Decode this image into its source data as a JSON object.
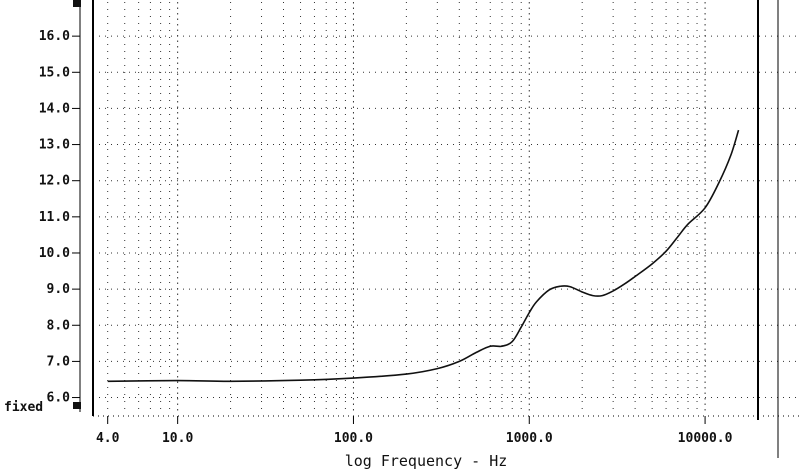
{
  "chart_data": {
    "type": "line",
    "title": "",
    "xlabel": "log Frequency - Hz",
    "ylabel": "",
    "x_scale": "log",
    "xlim": [
      3.3,
      20000
    ],
    "ylim": [
      5.6,
      17.0
    ],
    "x_ticks": [
      {
        "value": 4,
        "label": "4.0"
      },
      {
        "value": 10,
        "label": "10.0"
      },
      {
        "value": 100,
        "label": "100.0"
      },
      {
        "value": 1000,
        "label": "1000.0"
      },
      {
        "value": 10000,
        "label": "10000.0"
      }
    ],
    "y_ticks": [
      {
        "value": 6,
        "label": "6.0"
      },
      {
        "value": 7,
        "label": "7.0"
      },
      {
        "value": 8,
        "label": "8.0"
      },
      {
        "value": 9,
        "label": "9.0"
      },
      {
        "value": 10,
        "label": "10.0"
      },
      {
        "value": 11,
        "label": "11.0"
      },
      {
        "value": 12,
        "label": "12.0"
      },
      {
        "value": 13,
        "label": "13.0"
      },
      {
        "value": 14,
        "label": "14.0"
      },
      {
        "value": 15,
        "label": "15.0"
      },
      {
        "value": 16,
        "label": "16.0"
      }
    ],
    "y_bottom_label": "fixed",
    "grid": true,
    "series": [
      {
        "name": "",
        "x": [
          4,
          10,
          20,
          50,
          100,
          200,
          300,
          400,
          500,
          600,
          700,
          800,
          900,
          1000,
          1100,
          1300,
          1500,
          1700,
          2000,
          2300,
          2600,
          3000,
          3500,
          4000,
          5000,
          6000,
          7000,
          8000,
          10000,
          12000,
          14000,
          15500
        ],
        "y": [
          6.45,
          6.47,
          6.45,
          6.48,
          6.54,
          6.65,
          6.8,
          7.0,
          7.25,
          7.42,
          7.42,
          7.55,
          7.95,
          8.35,
          8.65,
          8.98,
          9.08,
          9.07,
          8.92,
          8.82,
          8.82,
          8.95,
          9.15,
          9.35,
          9.7,
          10.05,
          10.45,
          10.8,
          11.25,
          11.95,
          12.7,
          13.4
        ]
      }
    ]
  }
}
